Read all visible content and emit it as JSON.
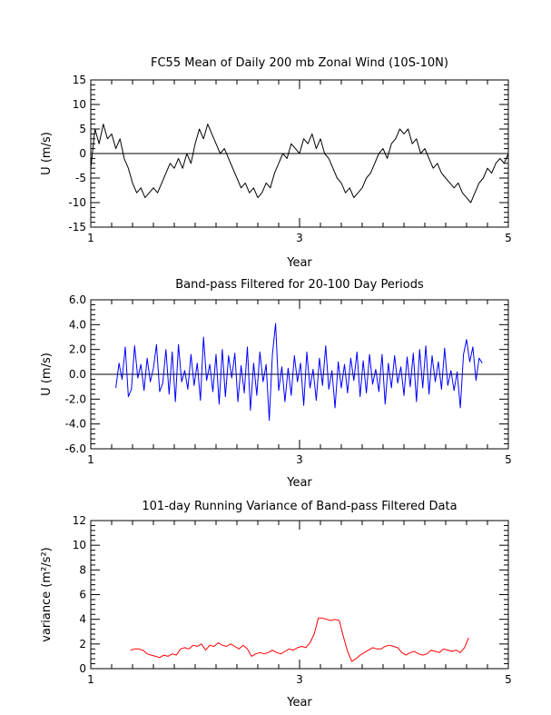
{
  "chart_data": [
    {
      "type": "line",
      "title": "FC55 Mean of Daily 200 mb Zonal Wind (10S-10N)",
      "xlabel": "Year",
      "ylabel": "U (m/s)",
      "xlim": [
        1,
        5
      ],
      "ylim": [
        -15,
        15
      ],
      "xticks": [
        "1",
        "3",
        "5"
      ],
      "yticks": [
        "15",
        "10",
        "5",
        "0",
        "-5",
        "-10",
        "-15"
      ],
      "zero_line": true,
      "color": "#000000",
      "series": [
        {
          "x": [
            1.0,
            1.04,
            1.08,
            1.12,
            1.16,
            1.2,
            1.24,
            1.28,
            1.32,
            1.36,
            1.4,
            1.44,
            1.48,
            1.52,
            1.56,
            1.6,
            1.64,
            1.68,
            1.72,
            1.76,
            1.8,
            1.84,
            1.88,
            1.92,
            1.96,
            2.0,
            2.04,
            2.08,
            2.12,
            2.16,
            2.2,
            2.24,
            2.28,
            2.32,
            2.36,
            2.4,
            2.44,
            2.48,
            2.52,
            2.56,
            2.6,
            2.64,
            2.68,
            2.72,
            2.76,
            2.8,
            2.84,
            2.88,
            2.92,
            2.96,
            3.0,
            3.04,
            3.08,
            3.12,
            3.16,
            3.2,
            3.24,
            3.28,
            3.32,
            3.36,
            3.4,
            3.44,
            3.48,
            3.52,
            3.56,
            3.6,
            3.64,
            3.68,
            3.72,
            3.76,
            3.8,
            3.84,
            3.88,
            3.92,
            3.96,
            4.0,
            4.04,
            4.08,
            4.12,
            4.16,
            4.2,
            4.24,
            4.28,
            4.32,
            4.36,
            4.4,
            4.44,
            4.48,
            4.52,
            4.56,
            4.6,
            4.64,
            4.68,
            4.72,
            4.76,
            4.8,
            4.84,
            4.88,
            4.92,
            4.96,
            5.0
          ],
          "y": [
            -3,
            5,
            2,
            6,
            3,
            4,
            1,
            3,
            -1,
            -3,
            -6,
            -8,
            -7,
            -9,
            -8,
            -7,
            -8,
            -6,
            -4,
            -2,
            -3,
            -1,
            -3,
            0,
            -2,
            2,
            5,
            3,
            6,
            4,
            2,
            0,
            1,
            -1,
            -3,
            -5,
            -7,
            -6,
            -8,
            -7,
            -9,
            -8,
            -6,
            -7,
            -4,
            -2,
            0,
            -1,
            2,
            1,
            0,
            3,
            2,
            4,
            1,
            3,
            0,
            -1,
            -3,
            -5,
            -6,
            -8,
            -7,
            -9,
            -8,
            -7,
            -5,
            -4,
            -2,
            0,
            1,
            -1,
            2,
            3,
            5,
            4,
            5,
            2,
            3,
            0,
            1,
            -1,
            -3,
            -2,
            -4,
            -5,
            -6,
            -7,
            -6,
            -8,
            -9,
            -10,
            -8,
            -6,
            -5,
            -3,
            -4,
            -2,
            -1,
            -2,
            0
          ]
        }
      ]
    },
    {
      "type": "line",
      "title": "Band-pass Filtered for 20-100 Day Periods",
      "xlabel": "Year",
      "ylabel": "U (m/s)",
      "xlim": [
        1,
        5
      ],
      "ylim": [
        -6,
        6
      ],
      "xticks": [
        "1",
        "3",
        "5"
      ],
      "yticks": [
        "6.0",
        "4.0",
        "2.0",
        "0.0",
        "-2.0",
        "-4.0",
        "-6.0"
      ],
      "zero_line": true,
      "color": "#0000ff",
      "series": [
        {
          "x": [
            1.24,
            1.27,
            1.3,
            1.33,
            1.36,
            1.39,
            1.42,
            1.45,
            1.48,
            1.51,
            1.54,
            1.57,
            1.6,
            1.63,
            1.66,
            1.69,
            1.72,
            1.75,
            1.78,
            1.81,
            1.84,
            1.87,
            1.9,
            1.93,
            1.96,
            1.99,
            2.02,
            2.05,
            2.08,
            2.11,
            2.14,
            2.17,
            2.2,
            2.23,
            2.26,
            2.29,
            2.32,
            2.35,
            2.38,
            2.41,
            2.44,
            2.47,
            2.5,
            2.53,
            2.56,
            2.59,
            2.62,
            2.65,
            2.68,
            2.71,
            2.74,
            2.77,
            2.8,
            2.83,
            2.86,
            2.89,
            2.92,
            2.95,
            2.98,
            3.01,
            3.04,
            3.07,
            3.1,
            3.13,
            3.16,
            3.19,
            3.22,
            3.25,
            3.28,
            3.31,
            3.34,
            3.37,
            3.4,
            3.43,
            3.46,
            3.49,
            3.52,
            3.55,
            3.58,
            3.61,
            3.64,
            3.67,
            3.7,
            3.73,
            3.76,
            3.79,
            3.82,
            3.85,
            3.88,
            3.91,
            3.94,
            3.97,
            4.0,
            4.03,
            4.06,
            4.09,
            4.12,
            4.15,
            4.18,
            4.21,
            4.24,
            4.27,
            4.3,
            4.33,
            4.36,
            4.39,
            4.42,
            4.45,
            4.48,
            4.51,
            4.54,
            4.57,
            4.6,
            4.63,
            4.66,
            4.69,
            4.72,
            4.75
          ],
          "y": [
            -1.1,
            0.9,
            -0.4,
            2.2,
            -1.8,
            -1.2,
            2.3,
            -0.3,
            0.8,
            -1.3,
            1.3,
            -0.6,
            0.5,
            2.4,
            -1.4,
            -0.7,
            2.0,
            -1.6,
            1.8,
            -2.2,
            2.4,
            -0.6,
            0.3,
            -1.2,
            1.6,
            -0.9,
            0.9,
            -2.1,
            3.0,
            -0.5,
            0.8,
            -1.4,
            1.6,
            -2.4,
            2.0,
            -1.8,
            1.5,
            -0.3,
            1.7,
            -2.2,
            0.7,
            -1.5,
            2.2,
            -2.9,
            0.9,
            -1.7,
            1.8,
            -0.6,
            0.8,
            -3.7,
            1.6,
            4.1,
            -1.3,
            0.6,
            -2.2,
            0.5,
            -1.7,
            1.5,
            -0.6,
            0.9,
            -2.5,
            1.8,
            -1.1,
            0.4,
            -2.1,
            1.3,
            -0.9,
            2.3,
            -1.2,
            0.3,
            -2.7,
            1.0,
            -1.1,
            0.8,
            -1.5,
            1.3,
            -0.5,
            1.8,
            -1.8,
            1.1,
            -1.5,
            1.6,
            -0.8,
            0.4,
            -1.4,
            1.6,
            -2.4,
            0.9,
            -1.1,
            1.5,
            -0.7,
            0.6,
            -1.7,
            1.4,
            -1.0,
            1.7,
            -2.2,
            2.0,
            -1.1,
            2.3,
            -1.6,
            1.5,
            -0.6,
            1.0,
            -1.2,
            2.1,
            -0.9,
            0.3,
            -1.3,
            0.2,
            -2.7,
            1.6,
            2.8,
            1.0,
            2.2,
            -0.5,
            1.3,
            0.9
          ]
        }
      ]
    },
    {
      "type": "line",
      "title": "101-day Running Variance of Band-pass Filtered Data",
      "xlabel": "Year",
      "ylabel": "variance (m²/s²)",
      "xlim": [
        1,
        5
      ],
      "ylim": [
        0,
        12
      ],
      "xticks": [
        "1",
        "3",
        "5"
      ],
      "yticks": [
        "12",
        "10",
        "8",
        "6",
        "4",
        "2",
        "0"
      ],
      "zero_line": false,
      "color": "#ff0000",
      "series": [
        {
          "x": [
            1.38,
            1.42,
            1.46,
            1.5,
            1.54,
            1.58,
            1.62,
            1.66,
            1.7,
            1.74,
            1.78,
            1.82,
            1.86,
            1.9,
            1.94,
            1.98,
            2.02,
            2.06,
            2.1,
            2.14,
            2.18,
            2.22,
            2.26,
            2.3,
            2.34,
            2.38,
            2.42,
            2.46,
            2.5,
            2.54,
            2.58,
            2.62,
            2.66,
            2.7,
            2.74,
            2.78,
            2.82,
            2.86,
            2.9,
            2.94,
            2.98,
            3.02,
            3.06,
            3.1,
            3.14,
            3.18,
            3.22,
            3.26,
            3.3,
            3.34,
            3.38,
            3.42,
            3.46,
            3.5,
            3.54,
            3.58,
            3.62,
            3.66,
            3.7,
            3.74,
            3.78,
            3.82,
            3.86,
            3.9,
            3.94,
            3.98,
            4.02,
            4.06,
            4.1,
            4.14,
            4.18,
            4.22,
            4.26,
            4.3,
            4.34,
            4.38,
            4.42,
            4.46,
            4.5,
            4.54,
            4.58,
            4.62
          ],
          "y": [
            1.5,
            1.6,
            1.6,
            1.5,
            1.2,
            1.1,
            1.0,
            0.9,
            1.1,
            1.0,
            1.2,
            1.1,
            1.6,
            1.7,
            1.6,
            1.9,
            1.8,
            2.0,
            1.5,
            1.9,
            1.8,
            2.1,
            1.9,
            1.8,
            2.0,
            1.8,
            1.6,
            1.9,
            1.6,
            1.0,
            1.2,
            1.3,
            1.2,
            1.3,
            1.5,
            1.3,
            1.2,
            1.4,
            1.6,
            1.5,
            1.7,
            1.8,
            1.7,
            2.1,
            2.8,
            4.1,
            4.1,
            4.0,
            3.9,
            4.0,
            3.9,
            2.6,
            1.4,
            0.6,
            0.8,
            1.1,
            1.3,
            1.5,
            1.7,
            1.6,
            1.6,
            1.8,
            1.9,
            1.8,
            1.7,
            1.3,
            1.1,
            1.3,
            1.4,
            1.2,
            1.1,
            1.2,
            1.5,
            1.4,
            1.3,
            1.6,
            1.5,
            1.4,
            1.5,
            1.3,
            1.7,
            2.5
          ]
        }
      ]
    }
  ]
}
